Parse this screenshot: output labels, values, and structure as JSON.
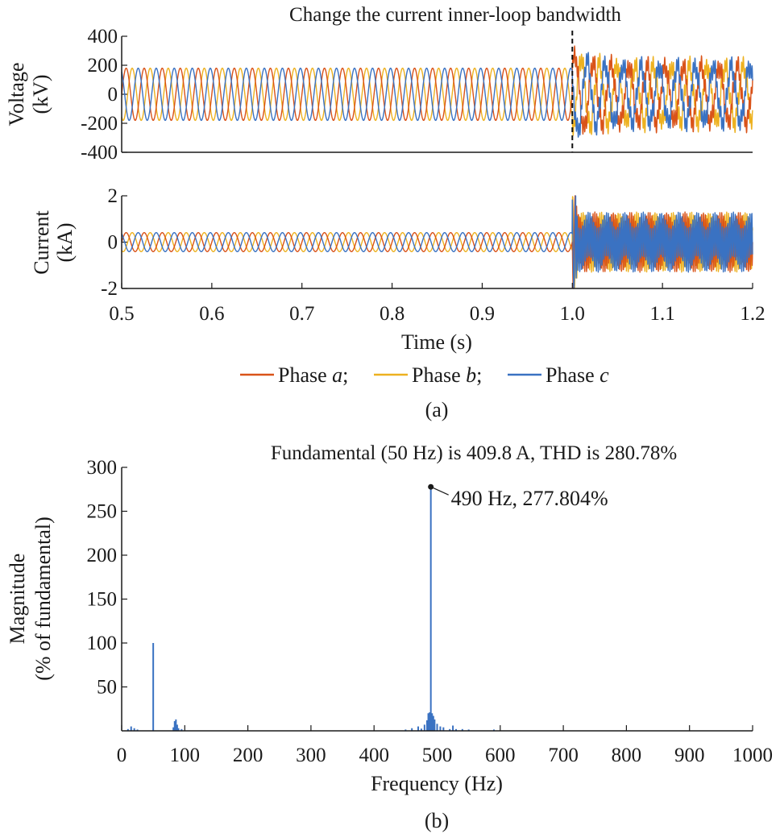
{
  "colors": {
    "phase_a": "#D95319",
    "phase_b": "#EDB120",
    "phase_c": "#3A72C2",
    "axis": "#1a1a1a"
  },
  "chart_data": [
    {
      "id": "voltage",
      "type": "line",
      "title": "Change the current inner-loop bandwidth",
      "ylabel": [
        "Voltage",
        "(kV)"
      ],
      "xlim": [
        0.5,
        1.2
      ],
      "ylim": [
        -400,
        400
      ],
      "yticks": [
        400,
        200,
        0,
        -200,
        -400
      ],
      "event_time": 1.0,
      "pre_event": {
        "frequency_hz": 50,
        "amplitude": 180
      },
      "post_event": {
        "frequency_hz": 50,
        "amplitude_range": [
          150,
          320
        ],
        "ripple": "high-frequency oscillation"
      },
      "series": [
        {
          "name": "Phase a"
        },
        {
          "name": "Phase b"
        },
        {
          "name": "Phase c"
        }
      ]
    },
    {
      "id": "current",
      "type": "line",
      "ylabel": [
        "Current",
        "(kA)"
      ],
      "xlabel": "Time (s)",
      "xlim": [
        0.5,
        1.2
      ],
      "ylim": [
        -2,
        2
      ],
      "xticks": [
        0.5,
        0.6,
        0.7,
        0.8,
        0.9,
        1.0,
        1.1,
        1.2
      ],
      "xtick_labels": [
        "0.5",
        "0.6",
        "0.7",
        "0.8",
        "0.9",
        "1.0",
        "1.1",
        "1.2"
      ],
      "yticks": [
        2,
        0,
        -2
      ],
      "event_time": 1.0,
      "pre_event": {
        "frequency_hz": 50,
        "amplitude": 0.41
      },
      "post_event": {
        "envelope_kA": 1.4,
        "dominant_frequency_hz": 490,
        "peak_kA": 2.0
      },
      "series": [
        {
          "name": "Phase a"
        },
        {
          "name": "Phase b"
        },
        {
          "name": "Phase c"
        }
      ]
    },
    {
      "id": "spectrum",
      "type": "bar",
      "title": "Fundamental (50 Hz) is 409.8 A, THD is 280.78%",
      "xlabel": "Frequency (Hz)",
      "ylabel": [
        "Magnitude",
        "(% of fundamental)"
      ],
      "xlim": [
        0,
        1000
      ],
      "ylim": [
        0,
        300
      ],
      "xticks": [
        0,
        100,
        200,
        300,
        400,
        500,
        600,
        700,
        800,
        900,
        1000
      ],
      "yticks": [
        300,
        250,
        200,
        150,
        100,
        50
      ],
      "x": [
        10,
        15,
        20,
        25,
        50,
        82,
        84,
        86,
        88,
        90,
        95,
        450,
        460,
        470,
        475,
        480,
        484,
        486,
        488,
        490,
        492,
        494,
        496,
        500,
        505,
        510,
        520,
        525,
        530,
        540,
        550,
        590
      ],
      "values": [
        2,
        5,
        3,
        1.5,
        100,
        4,
        11,
        13,
        7,
        3,
        2,
        1.5,
        3,
        5,
        2.5,
        7,
        12,
        20,
        21,
        277.804,
        20,
        17,
        13,
        8,
        5,
        4,
        2,
        6,
        2,
        2,
        1.5,
        1.5
      ],
      "annotation": {
        "x": 490,
        "y": 277.804,
        "text": "490 Hz, 277.804%"
      }
    }
  ],
  "legend": {
    "items": [
      {
        "prefix": "Phase ",
        "italic": "a",
        "suffix": ";"
      },
      {
        "prefix": "Phase ",
        "italic": "b",
        "suffix": ";"
      },
      {
        "prefix": "Phase ",
        "italic": "c",
        "suffix": ""
      }
    ]
  },
  "captions": {
    "a": "(a)",
    "b": "(b)"
  }
}
